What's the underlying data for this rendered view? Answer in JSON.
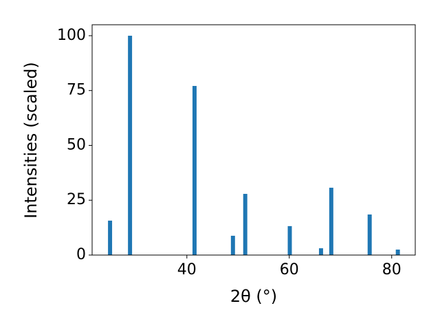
{
  "chart_data": {
    "type": "bar",
    "x_label": "2θ (°)",
    "y_label": "Intensities (scaled)",
    "x": [
      25.0,
      28.9,
      41.5,
      49.0,
      51.4,
      60.1,
      66.2,
      68.2,
      75.7,
      81.2
    ],
    "values": [
      15.7,
      100,
      77.1,
      8.8,
      27.9,
      13.2,
      3.1,
      30.7,
      18.5,
      2.5
    ],
    "color": "#1f77b4",
    "xlim": [
      21.5,
      84.6
    ],
    "xticks": [
      40,
      60,
      80
    ],
    "ylim": [
      0,
      105
    ],
    "yticks": [
      0,
      25,
      50,
      75,
      100
    ],
    "grid": false
  }
}
